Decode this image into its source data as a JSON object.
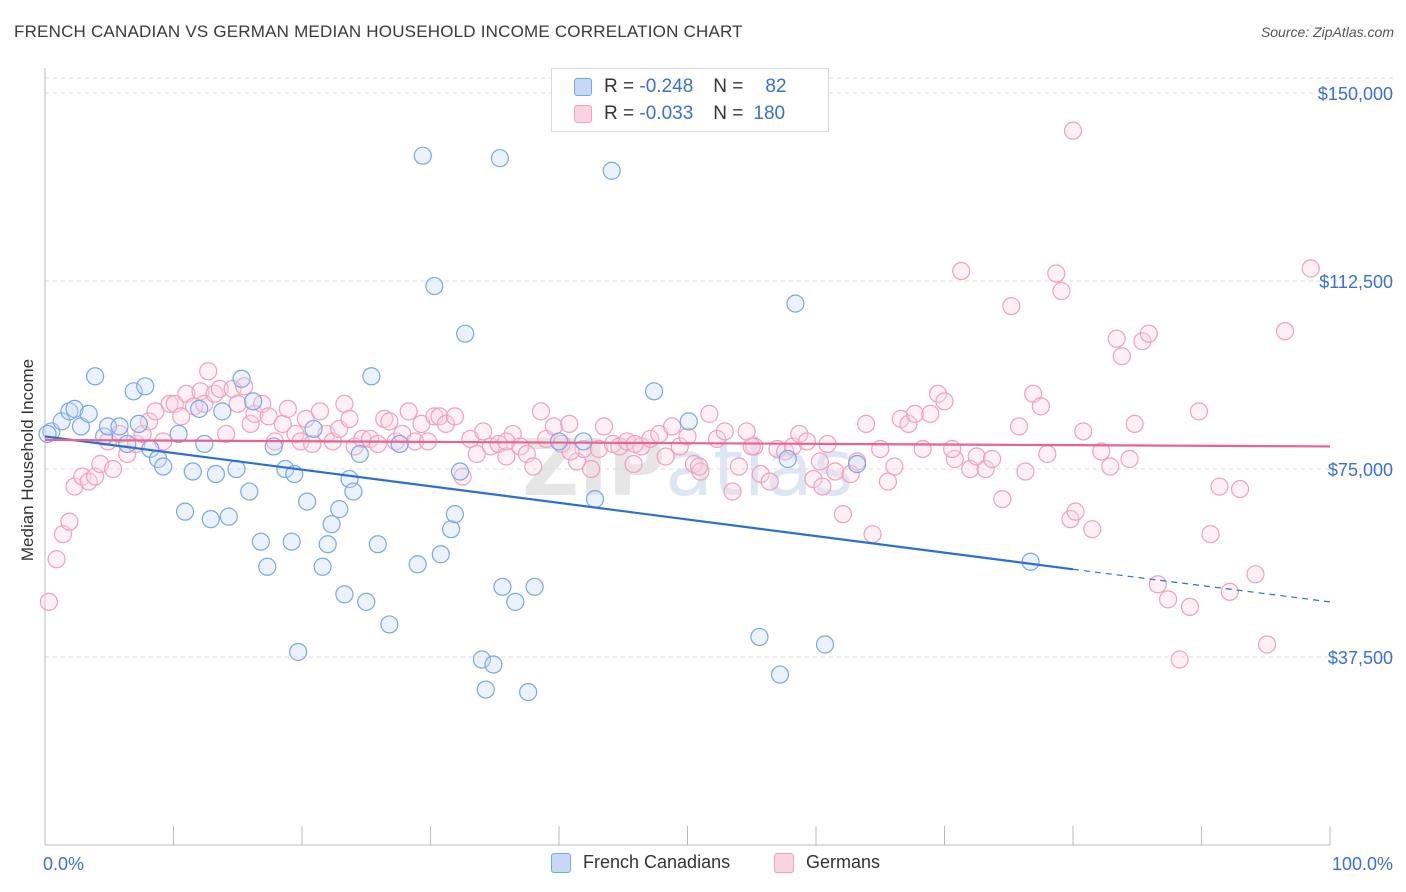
{
  "header": {
    "title": "FRENCH CANADIAN VS GERMAN MEDIAN HOUSEHOLD INCOME CORRELATION CHART",
    "source": "Source: ZipAtlas.com"
  },
  "legend": {
    "rows": [
      {
        "r_label": "R =",
        "r_value": "-0.248",
        "n_label": "N =",
        "n_value": "82",
        "color": "#7aa7e6",
        "fill": "#c5d9f5"
      },
      {
        "r_label": "R =",
        "r_value": "-0.033",
        "n_label": "N =",
        "n_value": "180",
        "color": "#f1a3bd",
        "fill": "#fbd3df"
      }
    ]
  },
  "bottom_legend": {
    "items": [
      {
        "label": "French Canadians",
        "color": "#7aa7e6",
        "fill": "#c5d9f5"
      },
      {
        "label": "Germans",
        "color": "#f1a3bd",
        "fill": "#fbd3df"
      }
    ]
  },
  "chart_data": {
    "type": "scatter",
    "title": "FRENCH CANADIAN VS GERMAN MEDIAN HOUSEHOLD INCOME CORRELATION CHART",
    "ylabel": "Median Household Income",
    "xlabel": "",
    "xlim": [
      0,
      100
    ],
    "ylim": [
      0,
      153000
    ],
    "x_tick_labels": [
      "0.0%",
      "100.0%"
    ],
    "y_ticks": [
      37500,
      75000,
      112500,
      150000
    ],
    "y_tick_labels": [
      "$37,500",
      "$75,000",
      "$112,500",
      "$150,000"
    ],
    "grid": true,
    "watermark": "ZIPatlas",
    "series": [
      {
        "name": "French Canadians",
        "color": "#5b8fdb",
        "line_color": "#2c6fd1",
        "trend": {
          "x0": 0,
          "y0": 81500,
          "x1": 80,
          "y1": 55000,
          "dash_to_x": 100,
          "dash_to_y": 48500
        },
        "points": [
          [
            0.5,
            82500
          ],
          [
            1.3,
            84500
          ],
          [
            1.9,
            86500
          ],
          [
            2.3,
            87000
          ],
          [
            2.8,
            83500
          ],
          [
            3.4,
            86000
          ],
          [
            3.9,
            93500
          ],
          [
            4.6,
            81500
          ],
          [
            4.9,
            83500
          ],
          [
            5.8,
            83500
          ],
          [
            6.4,
            80000
          ],
          [
            6.9,
            90500
          ],
          [
            7.3,
            84000
          ],
          [
            7.8,
            91500
          ],
          [
            8.2,
            79000
          ],
          [
            8.8,
            77000
          ],
          [
            9.2,
            75500
          ],
          [
            10.4,
            82000
          ],
          [
            10.9,
            66500
          ],
          [
            11.5,
            74500
          ],
          [
            12.0,
            87000
          ],
          [
            12.4,
            80000
          ],
          [
            12.9,
            65000
          ],
          [
            13.3,
            74000
          ],
          [
            13.8,
            86500
          ],
          [
            14.3,
            65500
          ],
          [
            14.9,
            75000
          ],
          [
            15.3,
            93000
          ],
          [
            15.9,
            70500
          ],
          [
            16.2,
            88500
          ],
          [
            16.8,
            60500
          ],
          [
            17.3,
            55500
          ],
          [
            17.8,
            79500
          ],
          [
            18.7,
            75000
          ],
          [
            19.2,
            60500
          ],
          [
            19.4,
            74000
          ],
          [
            19.7,
            38500
          ],
          [
            20.4,
            68500
          ],
          [
            20.9,
            83000
          ],
          [
            21.6,
            55500
          ],
          [
            22.0,
            60000
          ],
          [
            22.3,
            64000
          ],
          [
            22.9,
            67000
          ],
          [
            23.3,
            50000
          ],
          [
            23.7,
            73000
          ],
          [
            24.0,
            70500
          ],
          [
            24.5,
            78000
          ],
          [
            25.0,
            48500
          ],
          [
            25.4,
            93500
          ],
          [
            25.9,
            60000
          ],
          [
            26.8,
            44000
          ],
          [
            27.6,
            80000
          ],
          [
            29.0,
            56000
          ],
          [
            29.4,
            137500
          ],
          [
            30.3,
            111500
          ],
          [
            30.8,
            58000
          ],
          [
            31.6,
            63000
          ],
          [
            31.9,
            66000
          ],
          [
            32.3,
            74500
          ],
          [
            32.7,
            102000
          ],
          [
            34.0,
            37000
          ],
          [
            34.3,
            31000
          ],
          [
            34.9,
            36000
          ],
          [
            35.4,
            137000
          ],
          [
            35.6,
            51500
          ],
          [
            36.6,
            48500
          ],
          [
            37.6,
            30500
          ],
          [
            38.1,
            51500
          ],
          [
            40.0,
            80500
          ],
          [
            41.9,
            80500
          ],
          [
            42.8,
            69000
          ],
          [
            44.1,
            134500
          ],
          [
            47.4,
            90500
          ],
          [
            50.1,
            84500
          ],
          [
            55.6,
            41500
          ],
          [
            57.2,
            34000
          ],
          [
            57.8,
            77000
          ],
          [
            58.4,
            108000
          ],
          [
            60.7,
            40000
          ],
          [
            63.2,
            76000
          ],
          [
            76.7,
            56500
          ],
          [
            0.2,
            82000
          ]
        ]
      },
      {
        "name": "Germans",
        "color": "#ef8fb0",
        "line_color": "#e8638f",
        "trend": {
          "x0": 0,
          "y0": 80800,
          "x1": 100,
          "y1": 79500
        },
        "points": [
          [
            0.3,
            48500
          ],
          [
            0.9,
            57000
          ],
          [
            1.4,
            62000
          ],
          [
            1.9,
            64500
          ],
          [
            2.3,
            71500
          ],
          [
            2.9,
            73500
          ],
          [
            3.4,
            72500
          ],
          [
            3.9,
            73500
          ],
          [
            4.3,
            76000
          ],
          [
            4.9,
            80500
          ],
          [
            5.3,
            75000
          ],
          [
            5.8,
            82000
          ],
          [
            6.4,
            78000
          ],
          [
            7.1,
            80000
          ],
          [
            7.6,
            82000
          ],
          [
            8.1,
            84500
          ],
          [
            8.6,
            86500
          ],
          [
            9.2,
            80500
          ],
          [
            9.7,
            88000
          ],
          [
            10.1,
            88000
          ],
          [
            10.6,
            85500
          ],
          [
            11.0,
            90000
          ],
          [
            11.6,
            87500
          ],
          [
            12.1,
            90500
          ],
          [
            12.4,
            88000
          ],
          [
            12.7,
            94500
          ],
          [
            13.2,
            90000
          ],
          [
            13.6,
            91000
          ],
          [
            14.1,
            82000
          ],
          [
            14.6,
            91000
          ],
          [
            15.0,
            88000
          ],
          [
            15.5,
            91500
          ],
          [
            16.0,
            84000
          ],
          [
            16.3,
            86000
          ],
          [
            16.9,
            88000
          ],
          [
            17.4,
            85500
          ],
          [
            17.9,
            80500
          ],
          [
            18.5,
            84000
          ],
          [
            18.9,
            87000
          ],
          [
            19.5,
            82000
          ],
          [
            19.9,
            80500
          ],
          [
            20.3,
            85000
          ],
          [
            20.8,
            80000
          ],
          [
            21.4,
            86500
          ],
          [
            21.9,
            82000
          ],
          [
            22.4,
            80500
          ],
          [
            22.9,
            83000
          ],
          [
            23.3,
            88000
          ],
          [
            23.7,
            85000
          ],
          [
            24.1,
            79500
          ],
          [
            24.7,
            81000
          ],
          [
            25.3,
            81000
          ],
          [
            25.9,
            80000
          ],
          [
            26.4,
            85000
          ],
          [
            26.8,
            84500
          ],
          [
            27.3,
            80500
          ],
          [
            27.8,
            82000
          ],
          [
            28.3,
            86500
          ],
          [
            28.8,
            80500
          ],
          [
            29.3,
            84000
          ],
          [
            29.8,
            80500
          ],
          [
            30.3,
            85500
          ],
          [
            30.7,
            85500
          ],
          [
            31.2,
            84000
          ],
          [
            31.9,
            85500
          ],
          [
            32.5,
            73500
          ],
          [
            33.1,
            81000
          ],
          [
            33.6,
            78000
          ],
          [
            34.1,
            82500
          ],
          [
            34.7,
            79500
          ],
          [
            35.3,
            80000
          ],
          [
            35.9,
            77500
          ],
          [
            36.4,
            82000
          ],
          [
            37.0,
            79500
          ],
          [
            37.5,
            78000
          ],
          [
            38.0,
            75500
          ],
          [
            38.6,
            86500
          ],
          [
            39.0,
            81000
          ],
          [
            39.6,
            83500
          ],
          [
            40.2,
            80000
          ],
          [
            40.8,
            84000
          ],
          [
            41.4,
            76500
          ],
          [
            41.9,
            79000
          ],
          [
            42.5,
            75000
          ],
          [
            43.1,
            79000
          ],
          [
            43.5,
            83500
          ],
          [
            44.2,
            80000
          ],
          [
            44.7,
            79500
          ],
          [
            45.3,
            80500
          ],
          [
            45.8,
            76000
          ],
          [
            46.4,
            79500
          ],
          [
            47.1,
            81000
          ],
          [
            47.8,
            82000
          ],
          [
            48.3,
            77500
          ],
          [
            48.8,
            83500
          ],
          [
            49.4,
            79500
          ],
          [
            50.0,
            81500
          ],
          [
            50.5,
            76000
          ],
          [
            51.0,
            74500
          ],
          [
            51.7,
            86000
          ],
          [
            52.3,
            81000
          ],
          [
            52.9,
            82500
          ],
          [
            53.5,
            70500
          ],
          [
            54.0,
            75500
          ],
          [
            54.6,
            82500
          ],
          [
            55.2,
            79500
          ],
          [
            55.7,
            74000
          ],
          [
            56.4,
            72500
          ],
          [
            57.0,
            79000
          ],
          [
            57.6,
            78500
          ],
          [
            58.2,
            79500
          ],
          [
            58.7,
            82000
          ],
          [
            59.3,
            80500
          ],
          [
            59.8,
            73000
          ],
          [
            60.3,
            76500
          ],
          [
            60.9,
            80000
          ],
          [
            61.5,
            74500
          ],
          [
            62.1,
            66000
          ],
          [
            62.7,
            74000
          ],
          [
            63.2,
            76500
          ],
          [
            63.9,
            84000
          ],
          [
            64.4,
            62000
          ],
          [
            65.0,
            79000
          ],
          [
            65.6,
            72500
          ],
          [
            66.1,
            75500
          ],
          [
            66.6,
            85000
          ],
          [
            67.2,
            84000
          ],
          [
            67.7,
            86000
          ],
          [
            68.3,
            79000
          ],
          [
            68.9,
            86000
          ],
          [
            69.5,
            90000
          ],
          [
            70.0,
            88500
          ],
          [
            70.8,
            77000
          ],
          [
            71.3,
            114500
          ],
          [
            72.0,
            75000
          ],
          [
            72.5,
            77500
          ],
          [
            73.2,
            75000
          ],
          [
            73.7,
            77000
          ],
          [
            74.5,
            69000
          ],
          [
            75.2,
            107500
          ],
          [
            75.8,
            83500
          ],
          [
            76.3,
            74500
          ],
          [
            76.9,
            90000
          ],
          [
            77.5,
            87500
          ],
          [
            78.0,
            78000
          ],
          [
            78.7,
            114000
          ],
          [
            79.1,
            110500
          ],
          [
            79.8,
            65000
          ],
          [
            80.2,
            66500
          ],
          [
            80.8,
            82500
          ],
          [
            81.5,
            63000
          ],
          [
            82.2,
            78500
          ],
          [
            82.9,
            75500
          ],
          [
            83.4,
            101000
          ],
          [
            83.8,
            97500
          ],
          [
            84.4,
            77000
          ],
          [
            84.8,
            84000
          ],
          [
            85.4,
            100500
          ],
          [
            85.9,
            102000
          ],
          [
            86.6,
            52000
          ],
          [
            87.4,
            49000
          ],
          [
            88.3,
            37000
          ],
          [
            89.1,
            47500
          ],
          [
            89.8,
            86500
          ],
          [
            90.7,
            62000
          ],
          [
            91.4,
            71500
          ],
          [
            92.2,
            50500
          ],
          [
            93.0,
            71000
          ],
          [
            94.2,
            54000
          ],
          [
            95.1,
            40000
          ],
          [
            96.5,
            102500
          ],
          [
            98.5,
            115000
          ],
          [
            80.0,
            142500
          ],
          [
            70.6,
            79000
          ],
          [
            60.5,
            71500
          ],
          [
            55.0,
            79500
          ],
          [
            50.9,
            75500
          ],
          [
            45.9,
            80000
          ],
          [
            40.9,
            78500
          ],
          [
            35.9,
            80500
          ]
        ]
      }
    ]
  }
}
